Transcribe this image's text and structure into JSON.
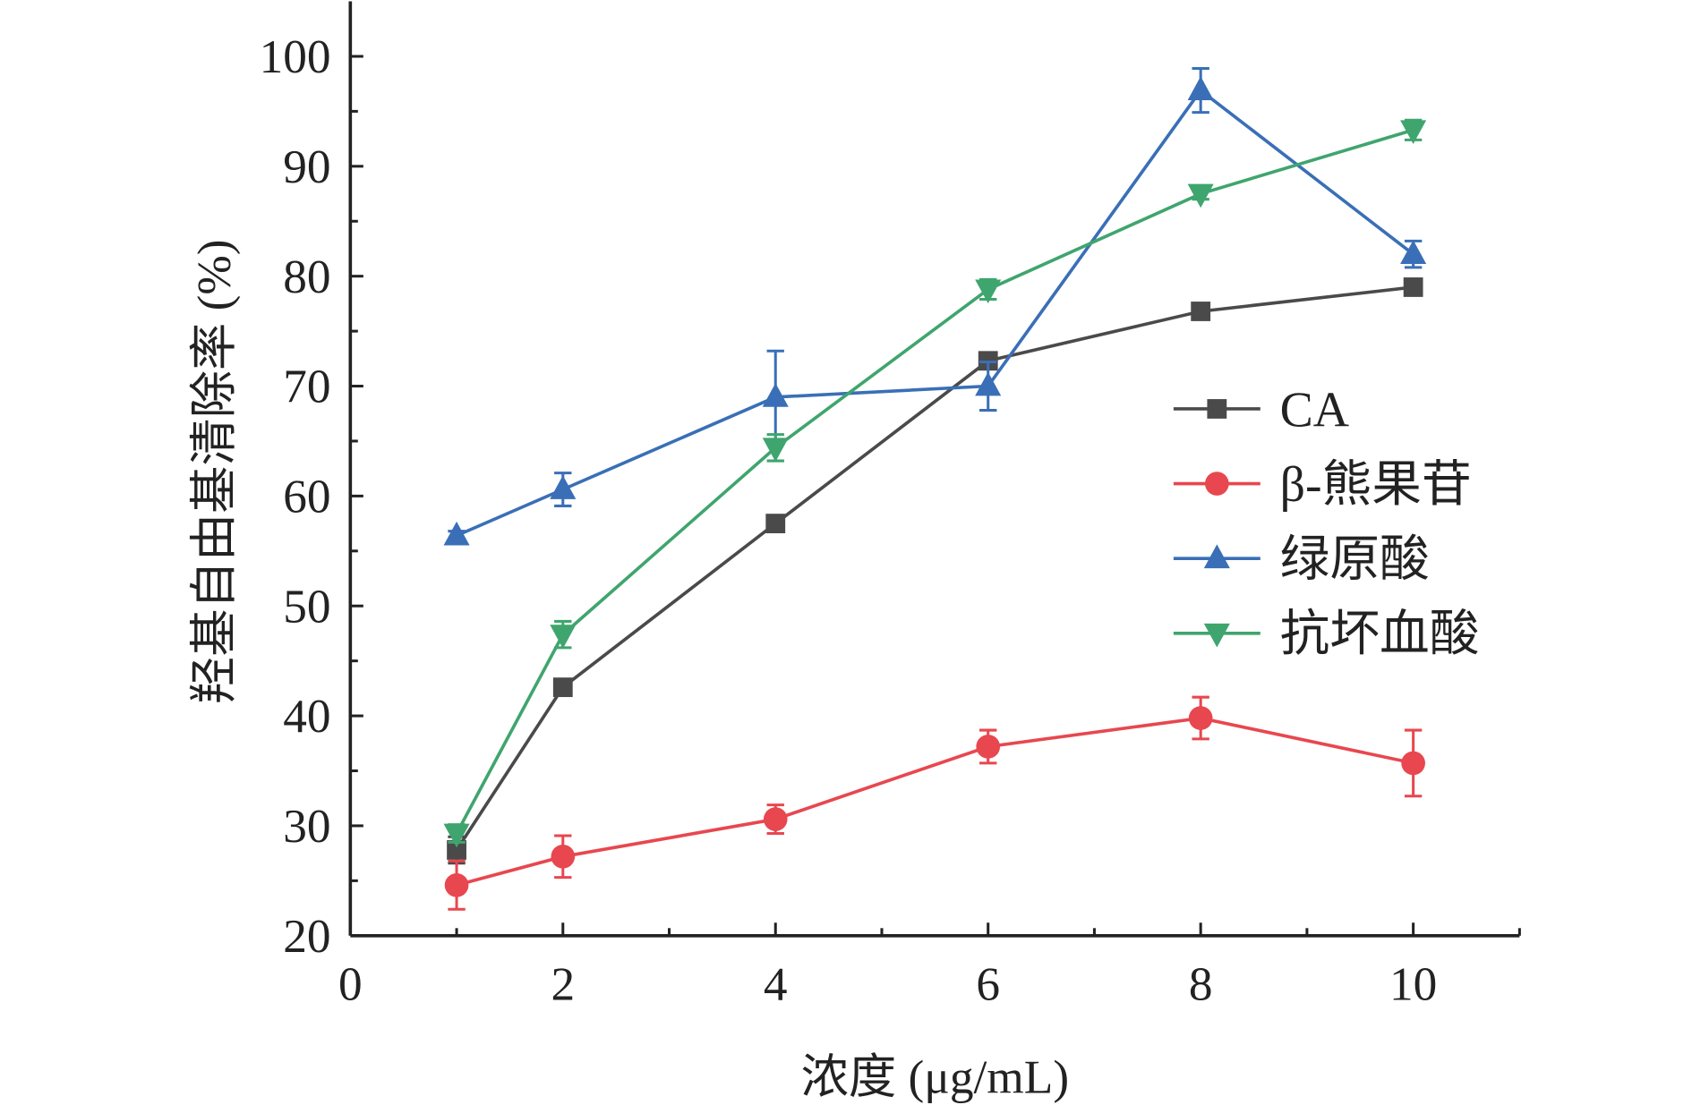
{
  "chart_data": {
    "type": "line",
    "title": "",
    "xlabel": "浓度 (μg/mL)",
    "ylabel": "羟基自由基清除率 (%)",
    "xlim": [
      0,
      11
    ],
    "ylim": [
      20,
      105
    ],
    "xticks": [
      "0",
      "2",
      "4",
      "6",
      "8",
      "10"
    ],
    "yticks": [
      "20",
      "30",
      "40",
      "50",
      "60",
      "70",
      "80",
      "90",
      "100"
    ],
    "grid": false,
    "legend_position": "right-middle",
    "x": [
      1,
      2,
      4,
      6,
      8,
      10
    ],
    "series": [
      {
        "name": "CA",
        "color": "#4a4a4a",
        "marker": "square",
        "values": [
          27.8,
          42.6,
          57.5,
          72.3,
          76.8,
          79.0
        ],
        "errors": [
          1.2,
          0.5,
          0.6,
          0.5,
          0.5,
          0.6
        ]
      },
      {
        "name": "β-熊果苷",
        "color": "#e8474f",
        "marker": "circle",
        "values": [
          24.6,
          27.2,
          30.6,
          37.2,
          39.8,
          35.7
        ],
        "errors": [
          2.2,
          1.9,
          1.3,
          1.5,
          1.9,
          3.0
        ]
      },
      {
        "name": "绿原酸",
        "color": "#3a6fb7",
        "marker": "triangle-up",
        "values": [
          56.4,
          60.6,
          69.0,
          70.0,
          96.9,
          82.0
        ],
        "errors": [
          0.4,
          1.5,
          4.2,
          2.2,
          2.0,
          1.2
        ]
      },
      {
        "name": "抗坏血酸",
        "color": "#3fa56e",
        "marker": "triangle-down",
        "values": [
          29.3,
          47.4,
          64.4,
          78.8,
          87.5,
          93.3
        ],
        "errors": [
          0.8,
          1.2,
          1.2,
          0.9,
          0.5,
          0.9
        ]
      }
    ]
  }
}
